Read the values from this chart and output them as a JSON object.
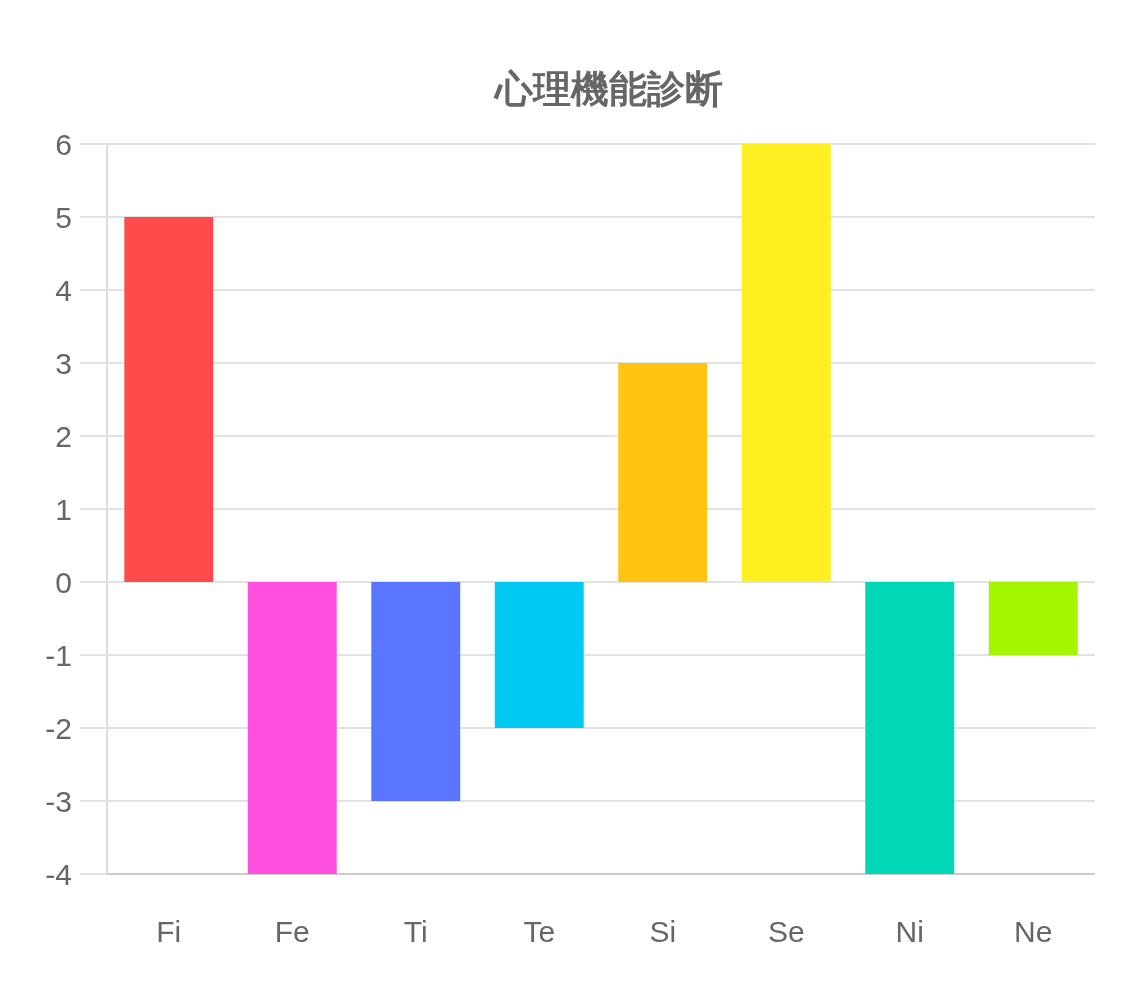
{
  "chart_data": {
    "type": "bar",
    "title": "心理機能診断",
    "categories": [
      "Fi",
      "Fe",
      "Ti",
      "Te",
      "Si",
      "Se",
      "Ni",
      "Ne"
    ],
    "values": [
      5,
      -4,
      -3,
      -2,
      3,
      6,
      -4,
      -1
    ],
    "colors": [
      "#ff4b4b",
      "#ff50e0",
      "#5a75ff",
      "#00c9f2",
      "#ffc310",
      "#fff022",
      "#00d8b8",
      "#a4f500"
    ],
    "ylim": [
      -4,
      6
    ],
    "yticks": [
      -4,
      -3,
      -2,
      -1,
      0,
      1,
      2,
      3,
      4,
      5,
      6
    ],
    "grid": "y"
  }
}
